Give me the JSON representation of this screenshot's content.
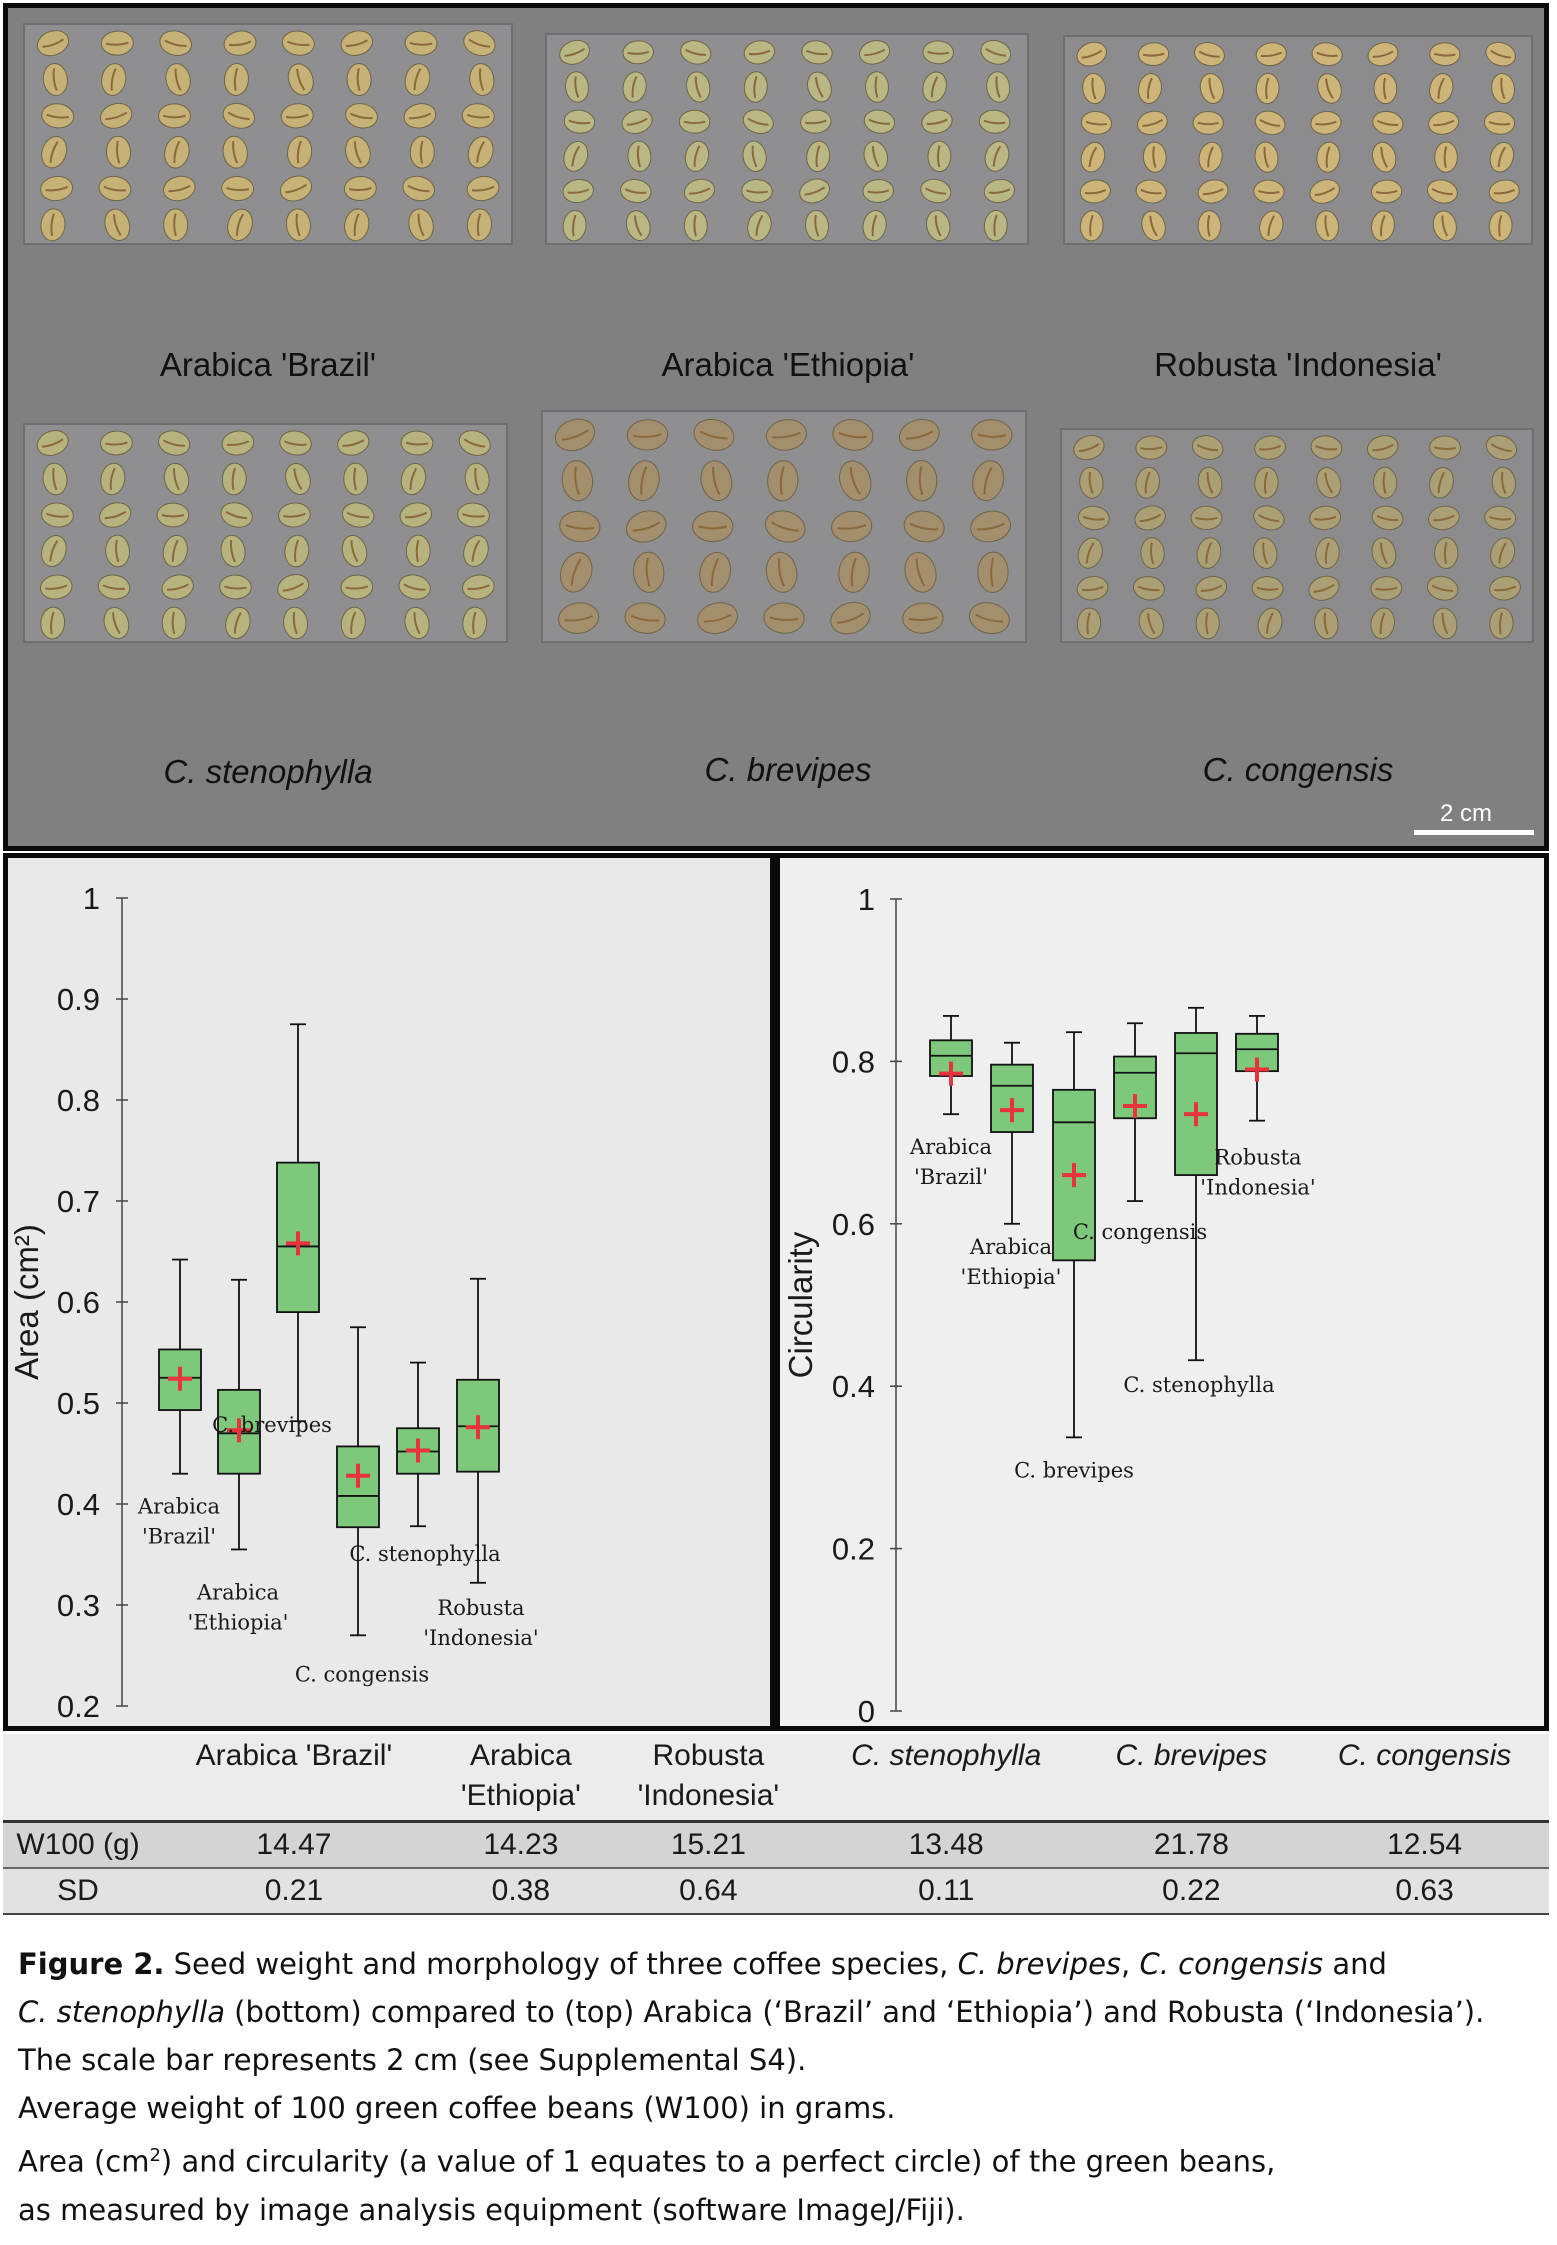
{
  "photos": [
    {
      "label": "Arabica 'Brazil'",
      "italic": false,
      "bean_color": "#c6b277",
      "rows": 6,
      "cols": 8,
      "tone": "#8f8e90"
    },
    {
      "label": "Arabica 'Ethiopia'",
      "italic": false,
      "bean_color": "#b9b784",
      "rows": 6,
      "cols": 8,
      "tone": "#8f8e90"
    },
    {
      "label": "Robusta 'Indonesia'",
      "italic": false,
      "bean_color": "#cdb57a",
      "rows": 6,
      "cols": 8,
      "tone": "#8c8b8d"
    },
    {
      "label": "C. stenophylla",
      "italic": true,
      "bean_color": "#b6b37e",
      "rows": 6,
      "cols": 8,
      "tone": "#8f8e90"
    },
    {
      "label": "C. brevipes",
      "italic": true,
      "bean_color": "#a38e6d",
      "rows": 5,
      "cols": 7,
      "tone": "#8f8e90"
    },
    {
      "label": "C. congensis",
      "italic": true,
      "bean_color": "#ab9f75",
      "rows": 6,
      "cols": 8,
      "tone": "#8c8b8d"
    }
  ],
  "scale_bar": "2 cm",
  "chart_data": [
    {
      "type": "box",
      "ylabel": "Area (cm²)",
      "ylim": [
        0.2,
        1.0
      ],
      "yticks": [
        "0.2",
        "0.3",
        "0.4",
        "0.5",
        "0.6",
        "0.7",
        "0.8",
        "0.9",
        "1"
      ],
      "box_color": "#7ec87b",
      "mean_marker_color": "#e8323c",
      "series": [
        {
          "label": [
            "Arabica",
            "'Brazil'"
          ],
          "min": 0.43,
          "q1": 0.493,
          "median": 0.525,
          "q3": 0.553,
          "max": 0.642,
          "mean": 0.524
        },
        {
          "label": [
            "Arabica",
            "'Ethiopia'"
          ],
          "min": 0.355,
          "q1": 0.43,
          "median": 0.47,
          "q3": 0.513,
          "max": 0.622,
          "mean": 0.473
        },
        {
          "label": [
            "C. brevipes"
          ],
          "min": 0.482,
          "q1": 0.59,
          "median": 0.655,
          "q3": 0.738,
          "max": 0.875,
          "mean": 0.658
        },
        {
          "label": [
            "C. congensis"
          ],
          "min": 0.27,
          "q1": 0.377,
          "median": 0.408,
          "q3": 0.457,
          "max": 0.575,
          "mean": 0.428
        },
        {
          "label": [
            "C. stenophylla"
          ],
          "min": 0.378,
          "q1": 0.43,
          "median": 0.452,
          "q3": 0.475,
          "max": 0.54,
          "mean": 0.453
        },
        {
          "label": [
            "Robusta",
            "'Indonesia'"
          ],
          "min": 0.322,
          "q1": 0.432,
          "median": 0.477,
          "q3": 0.523,
          "max": 0.623,
          "mean": 0.476
        }
      ]
    },
    {
      "type": "box",
      "ylabel": "Circularity",
      "ylim": [
        0,
        1
      ],
      "yticks": [
        "0",
        "0.2",
        "0.4",
        "0.6",
        "0.8",
        "1"
      ],
      "box_color": "#7ec87b",
      "mean_marker_color": "#e8323c",
      "series": [
        {
          "label": [
            "Arabica",
            "'Brazil'"
          ],
          "min": 0.735,
          "q1": 0.782,
          "median": 0.807,
          "q3": 0.826,
          "max": 0.856,
          "mean": 0.785
        },
        {
          "label": [
            "Arabica",
            "'Ethiopia'"
          ],
          "min": 0.6,
          "q1": 0.713,
          "median": 0.77,
          "q3": 0.796,
          "max": 0.823,
          "mean": 0.74
        },
        {
          "label": [
            "C. brevipes"
          ],
          "min": 0.337,
          "q1": 0.555,
          "median": 0.725,
          "q3": 0.765,
          "max": 0.836,
          "mean": 0.66
        },
        {
          "label": [
            "C. congensis"
          ],
          "min": 0.628,
          "q1": 0.73,
          "median": 0.786,
          "q3": 0.806,
          "max": 0.847,
          "mean": 0.745
        },
        {
          "label": [
            "C. stenophylla"
          ],
          "min": 0.432,
          "q1": 0.66,
          "median": 0.81,
          "q3": 0.835,
          "max": 0.866,
          "mean": 0.735
        },
        {
          "label": [
            "Robusta",
            "'Indonesia'"
          ],
          "min": 0.727,
          "q1": 0.788,
          "median": 0.815,
          "q3": 0.834,
          "max": 0.856,
          "mean": 0.79
        }
      ]
    }
  ],
  "table": {
    "headers": [
      {
        "text": [
          "Arabica 'Brazil'"
        ],
        "italic": false
      },
      {
        "text": [
          "Arabica",
          "'Ethiopia'"
        ],
        "italic": false
      },
      {
        "text": [
          "Robusta",
          "'Indonesia'"
        ],
        "italic": false
      },
      {
        "text": [
          "C. stenophylla"
        ],
        "italic": true
      },
      {
        "text": [
          "C. brevipes"
        ],
        "italic": true
      },
      {
        "text": [
          "C. congensis"
        ],
        "italic": true
      }
    ],
    "rows": [
      {
        "label": "W100 (g)",
        "values": [
          "14.47",
          "14.23",
          "15.21",
          "13.48",
          "21.78",
          "12.54"
        ]
      },
      {
        "label": "SD",
        "values": [
          "0.21",
          "0.38",
          "0.64",
          "0.11",
          "0.22",
          "0.63"
        ]
      }
    ]
  },
  "caption": {
    "fig_label": "Figure 2.",
    "line1_a": " Seed weight and morphology of three coffee species, ",
    "line1_b": "C. brevipes",
    "line1_c": ", ",
    "line1_d": "C. congensis",
    "line1_e": " and",
    "line2_a": "C. stenophylla",
    "line2_b": " (bottom) compared to (top) Arabica (‘Brazil’ and ‘Ethiopia’) and Robusta (‘Indonesia’).",
    "line3": "The scale bar represents 2 cm (see Supplemental S4).",
    "line4": "Average weight of 100 green coffee beans (W100) in grams.",
    "line5_a": "Area (cm",
    "line5_sup": "2",
    "line5_b": ") and circularity (a value of 1 equates to a perfect circle) of the green beans,",
    "line6": "as measured by image analysis equipment (software ImageJ/Fiji)."
  }
}
